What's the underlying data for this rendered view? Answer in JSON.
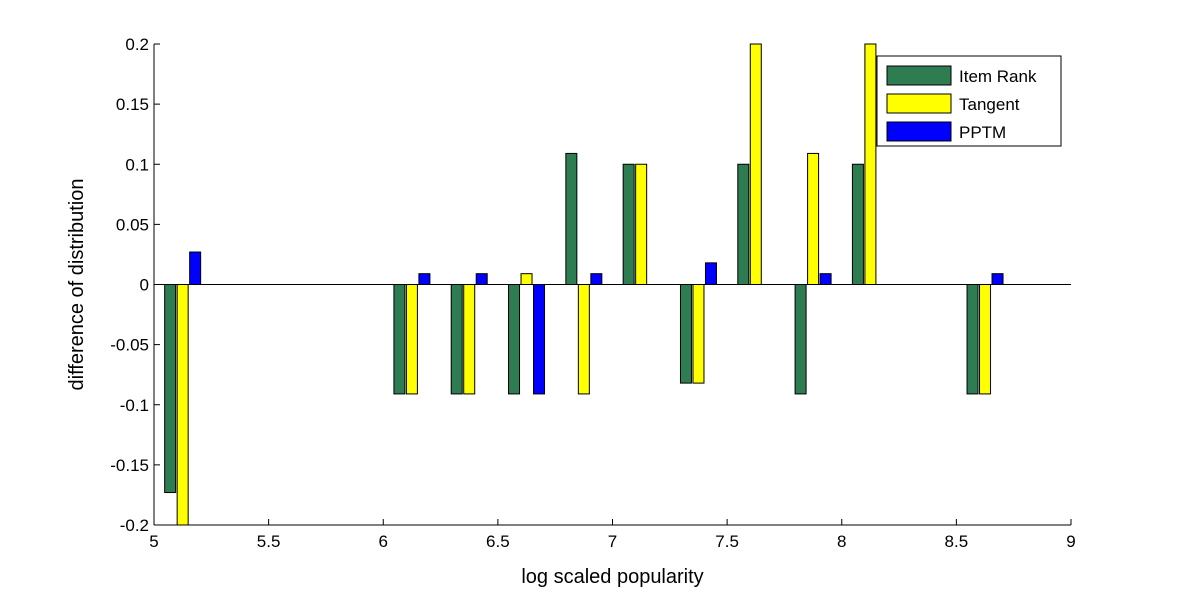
{
  "chart_data": {
    "type": "bar",
    "title": "",
    "xlabel": "log scaled popularity",
    "ylabel": "difference of distribution",
    "xlim": [
      5,
      9
    ],
    "ylim": [
      -0.2,
      0.2
    ],
    "xticks": [
      {
        "value": 5,
        "label": "5"
      },
      {
        "value": 5.5,
        "label": "5.5"
      },
      {
        "value": 6,
        "label": "6"
      },
      {
        "value": 6.5,
        "label": "6.5"
      },
      {
        "value": 7,
        "label": "7"
      },
      {
        "value": 7.5,
        "label": "7.5"
      },
      {
        "value": 8,
        "label": "8"
      },
      {
        "value": 8.5,
        "label": "8.5"
      },
      {
        "value": 9,
        "label": "9"
      }
    ],
    "yticks": [
      {
        "value": 0.2,
        "label": "0.2"
      },
      {
        "value": 0.15,
        "label": "0.15"
      },
      {
        "value": 0.1,
        "label": "0.1"
      },
      {
        "value": 0.05,
        "label": "0.05"
      },
      {
        "value": 0,
        "label": "0"
      },
      {
        "value": -0.05,
        "label": "-0.05"
      },
      {
        "value": -0.1,
        "label": "-0.1"
      },
      {
        "value": -0.15,
        "label": "-0.15"
      },
      {
        "value": -0.2,
        "label": "-0.2"
      }
    ],
    "grid": false,
    "legend_position": "top-right",
    "categories": [
      5.125,
      6.125,
      6.375,
      6.625,
      6.875,
      7.125,
      7.375,
      7.625,
      7.875,
      8.125,
      8.625
    ],
    "series": [
      {
        "name": "Item Rank",
        "color": "#2e7d52",
        "values": [
          -0.173,
          -0.091,
          -0.091,
          -0.091,
          0.109,
          0.1,
          -0.082,
          0.1,
          -0.091,
          0.1,
          -0.091
        ]
      },
      {
        "name": "Tangent",
        "color": "#ffff00",
        "values": [
          -0.2,
          -0.091,
          -0.091,
          0.009,
          -0.091,
          0.1,
          -0.082,
          0.2,
          0.109,
          0.2,
          -0.091
        ]
      },
      {
        "name": "PPTM",
        "color": "#0000ff",
        "values": [
          0.027,
          0.009,
          0.009,
          -0.091,
          0.009,
          0,
          0.018,
          0,
          0.009,
          0,
          0.009
        ]
      }
    ]
  }
}
